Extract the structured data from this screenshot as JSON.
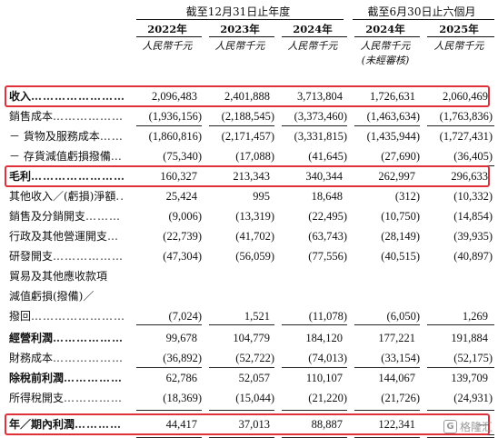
{
  "header": {
    "period_fy": "截至12月31日止年度",
    "period_hy": "截至6月30日止六個月",
    "years": [
      "2022年",
      "2023年",
      "2024年",
      "2024年",
      "2025年"
    ],
    "unit": "人民幣千元",
    "unaudited": "(未經審核)"
  },
  "rows": [
    {
      "label": "收入",
      "dots": "……………………",
      "bold": true,
      "values": [
        "2,096,483",
        "2,401,888",
        "3,713,804",
        "1,726,631",
        "2,060,469"
      ]
    },
    {
      "label": "銷售成本",
      "dots": "………………",
      "bold": false,
      "values": [
        "(1,936,156)",
        "(2,188,545)",
        "(3,373,460)",
        "(1,463,634)",
        "(1,763,836)"
      ]
    },
    {
      "label": "－ 貨物及服務成本",
      "dots": "……",
      "bold": false,
      "values": [
        "(1,860,816)",
        "(2,171,457)",
        "(3,331,815)",
        "(1,435,944)",
        "(1,727,431)"
      ]
    },
    {
      "label": "－ 存貨減值虧損撥備",
      "dots": "…",
      "bold": false,
      "values": [
        "(75,340)",
        "(17,088)",
        "(41,645)",
        "(27,690)",
        "(36,405)"
      ]
    },
    {
      "label": "毛利",
      "dots": "……………………",
      "bold": true,
      "values": [
        "160,327",
        "213,343",
        "340,344",
        "262,997",
        "296,633"
      ]
    },
    {
      "label": "其他收入／(虧損)淨額",
      "dots": "..",
      "bold": false,
      "values": [
        "25,424",
        "995",
        "18,648",
        "(312)",
        "(10,332)"
      ]
    },
    {
      "label": "銷售及分銷開支",
      "dots": "………",
      "bold": false,
      "values": [
        "(9,006)",
        "(13,319)",
        "(22,495)",
        "(10,750)",
        "(14,854)"
      ]
    },
    {
      "label": "行政及其他營運開支",
      "dots": "…",
      "bold": false,
      "values": [
        "(22,739)",
        "(41,702)",
        "(63,743)",
        "(28,149)",
        "(39,935)"
      ]
    },
    {
      "label": "研發開支",
      "dots": "………………",
      "bold": false,
      "values": [
        "(47,304)",
        "(56,059)",
        "(77,556)",
        "(40,515)",
        "(40,897)"
      ]
    },
    {
      "label": "貿易及其他應收款項",
      "dots": "",
      "bold": false,
      "values": [
        "",
        "",
        "",
        "",
        ""
      ]
    },
    {
      "label": "減值虧損(撥備)／",
      "dots": "",
      "bold": false,
      "values": [
        "",
        "",
        "",
        "",
        ""
      ]
    },
    {
      "label": "撥回",
      "dots": "……………………",
      "bold": false,
      "values": [
        "(7,024)",
        "1,521",
        "(11,078)",
        "(6,050)",
        "1,269"
      ]
    },
    {
      "label": "經營利潤",
      "dots": "………………",
      "bold": true,
      "values": [
        "99,678",
        "104,779",
        "184,120",
        "177,221",
        "191,884"
      ]
    },
    {
      "label": "財務成本",
      "dots": "………………",
      "bold": false,
      "values": [
        "(36,892)",
        "(52,722)",
        "(74,013)",
        "(33,154)",
        "(52,175)"
      ]
    },
    {
      "label": "除稅前利潤",
      "dots": "……………",
      "bold": true,
      "values": [
        "62,786",
        "52,057",
        "110,107",
        "144,067",
        "139,709"
      ]
    },
    {
      "label": "所得稅開支",
      "dots": "……………",
      "bold": false,
      "values": [
        "(18,369)",
        "(15,044)",
        "(21,220)",
        "(21,726)",
        "(24,931)"
      ]
    },
    {
      "label": "年／期內利潤",
      "dots": "…………",
      "bold": true,
      "values": [
        "44,417",
        "37,013",
        "88,887",
        "122,341",
        "—"
      ]
    }
  ],
  "watermark": {
    "logo": "G",
    "text": "格隆汇"
  },
  "colors": {
    "highlight": "#e0303a",
    "text": "#111111"
  }
}
